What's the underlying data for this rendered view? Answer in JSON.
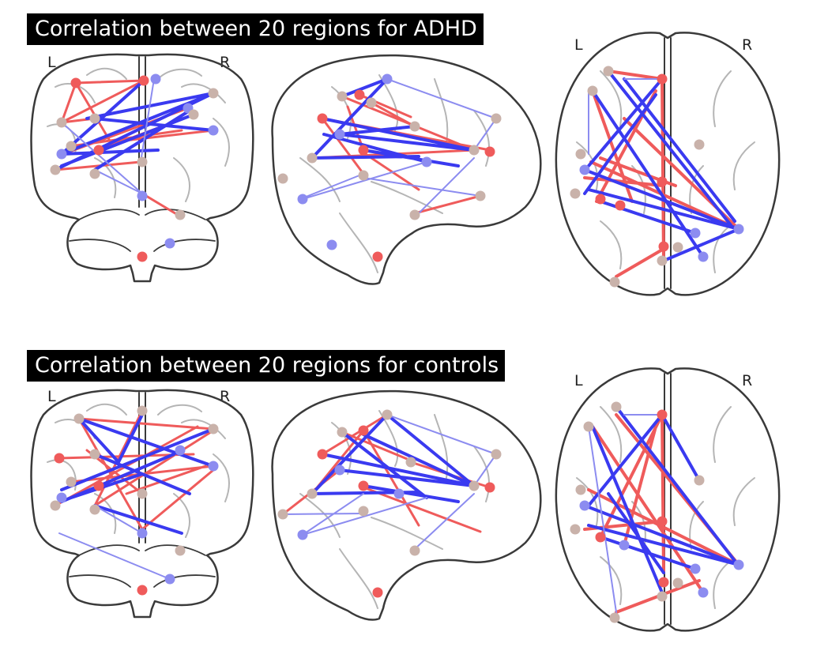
{
  "figure": {
    "panels": [
      {
        "title": "Correlation between 20 regions for ADHD",
        "left_label": "L",
        "right_label": "R"
      },
      {
        "title": "Correlation between 20 regions for controls",
        "left_label": "L",
        "right_label": "R"
      }
    ]
  },
  "colors": {
    "positive": "#ef5b5b",
    "negative": "#3a3af0",
    "negative_light": "#8c8cf0",
    "node_tan": "#c9b2aa",
    "outline": "#3a3a3a",
    "sulci": "#b5b5b5",
    "title_bg": "#000000",
    "title_fg": "#ffffff"
  }
}
